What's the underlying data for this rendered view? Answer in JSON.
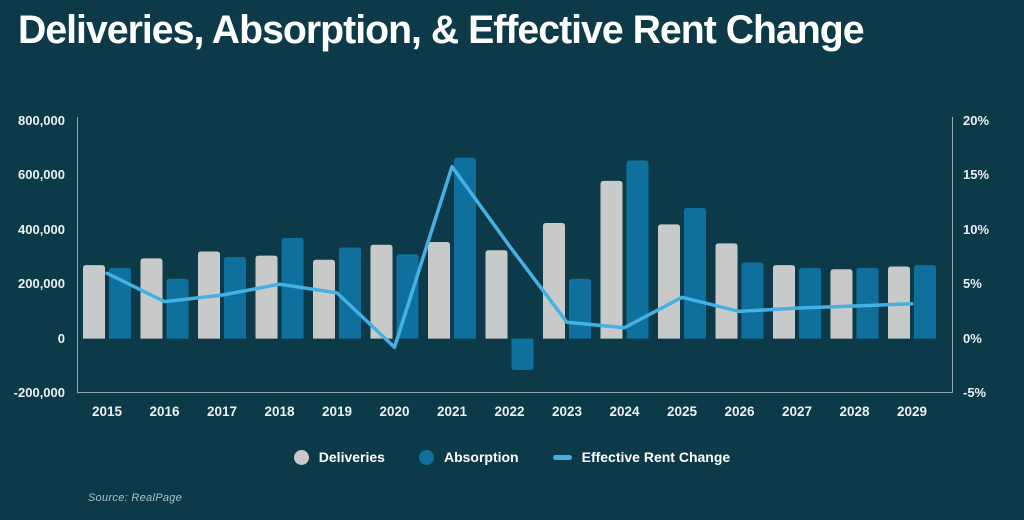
{
  "title": "Deliveries, Absorption, & Effective Rent Change",
  "source": "Source: RealPage",
  "colors": {
    "background": "#0d3a48",
    "deliveries_bar": "#c8cac9",
    "absorption_bar": "#0f709e",
    "rent_line": "#45b0e4",
    "axis_line": "#a9c0c7",
    "text": "#ffffff"
  },
  "chart_data": {
    "type": "bar",
    "subtype": "grouped-bars-with-line-overlay",
    "categories": [
      "2015",
      "2016",
      "2017",
      "2018",
      "2019",
      "2020",
      "2021",
      "2022",
      "2023",
      "2024",
      "2025",
      "2026",
      "2027",
      "2028",
      "2029"
    ],
    "series": [
      {
        "name": "Deliveries",
        "type": "bar",
        "axis": "left",
        "color": "#c8cac9",
        "values": [
          270000,
          295000,
          320000,
          305000,
          290000,
          345000,
          355000,
          325000,
          425000,
          580000,
          420000,
          350000,
          270000,
          255000,
          265000
        ]
      },
      {
        "name": "Absorption",
        "type": "bar",
        "axis": "left",
        "color": "#0f709e",
        "values": [
          260000,
          220000,
          300000,
          370000,
          335000,
          310000,
          665000,
          -115000,
          220000,
          655000,
          480000,
          280000,
          260000,
          260000,
          270000
        ]
      },
      {
        "name": "Effective Rent Change",
        "type": "line",
        "axis": "right",
        "color": "#45b0e4",
        "values": [
          6.0,
          3.4,
          4.0,
          5.0,
          4.2,
          -0.8,
          15.8,
          8.5,
          1.5,
          1.0,
          3.8,
          2.5,
          2.8,
          3.0,
          3.2
        ]
      }
    ],
    "left_axis": {
      "ticks": [
        "800,000",
        "600,000",
        "400,000",
        "200,000",
        "0",
        "-200,000"
      ],
      "min": -200000,
      "max": 800000
    },
    "right_axis": {
      "ticks": [
        "20%",
        "15%",
        "10%",
        "5%",
        "0%",
        "-5%"
      ],
      "min": -5,
      "max": 20
    },
    "legend": [
      {
        "label": "Deliveries",
        "swatch": "circle"
      },
      {
        "label": "Absorption",
        "swatch": "circle"
      },
      {
        "label": "Effective Rent Change",
        "swatch": "dash"
      }
    ],
    "grid": false,
    "legend_position": "bottom-center"
  }
}
